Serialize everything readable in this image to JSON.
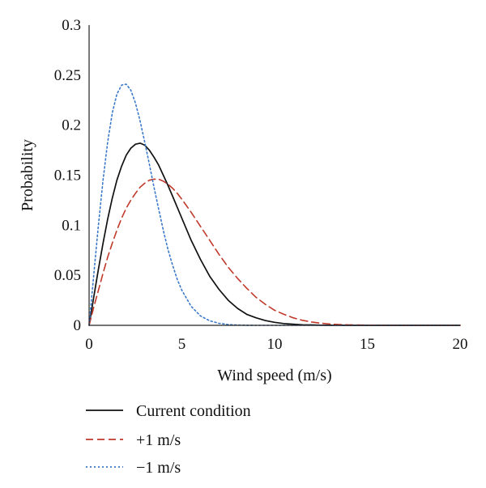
{
  "chart_data": {
    "type": "line",
    "title": "",
    "xlabel": "Wind speed (m/s)",
    "ylabel": "Probability",
    "xlim": [
      0,
      20
    ],
    "ylim": [
      0,
      0.3
    ],
    "xticks": [
      0,
      5,
      10,
      15,
      20
    ],
    "xtick_labels": [
      "0",
      "5",
      "10",
      "15",
      "20"
    ],
    "yticks": [
      0,
      0.05,
      0.1,
      0.15,
      0.2,
      0.25,
      0.3
    ],
    "ytick_labels": [
      "0",
      "0.05",
      "0.1",
      "0.15",
      "0.2",
      "0.25",
      "0.3"
    ],
    "grid": false,
    "legend_position": "bottom-left",
    "x": [
      0,
      0.25,
      0.5,
      0.75,
      1,
      1.25,
      1.5,
      1.75,
      2,
      2.25,
      2.5,
      2.75,
      3,
      3.25,
      3.5,
      3.75,
      4,
      4.25,
      4.5,
      4.75,
      5,
      5.5,
      6,
      6.5,
      7,
      7.5,
      8,
      8.5,
      9,
      9.5,
      10,
      10.5,
      11,
      11.5,
      12,
      12.5,
      13,
      13.5,
      14,
      15,
      16,
      17,
      18,
      19,
      20
    ],
    "series": [
      {
        "name": "Current condition",
        "color": "#111111",
        "dash": "solid",
        "values": [
          0,
          0.028,
          0.056,
          0.082,
          0.106,
          0.127,
          0.145,
          0.159,
          0.17,
          0.177,
          0.181,
          0.182,
          0.18,
          0.175,
          0.168,
          0.16,
          0.15,
          0.14,
          0.129,
          0.118,
          0.107,
          0.085,
          0.066,
          0.049,
          0.036,
          0.025,
          0.017,
          0.011,
          0.0075,
          0.0048,
          0.003,
          0.0018,
          0.0011,
          0.0006,
          0.0004,
          0.0002,
          0.0001,
          0.0001,
          0,
          0,
          0,
          0,
          0,
          0,
          0
        ]
      },
      {
        "name": "+1 m/s",
        "color": "#c0392b",
        "dash": "dashed",
        "values": [
          0,
          0.018,
          0.035,
          0.052,
          0.068,
          0.082,
          0.095,
          0.107,
          0.117,
          0.125,
          0.132,
          0.138,
          0.142,
          0.145,
          0.146,
          0.146,
          0.144,
          0.141,
          0.137,
          0.132,
          0.126,
          0.113,
          0.099,
          0.085,
          0.071,
          0.058,
          0.047,
          0.037,
          0.028,
          0.021,
          0.015,
          0.011,
          0.0075,
          0.005,
          0.0033,
          0.0021,
          0.0013,
          0.0008,
          0.0005,
          0.0002,
          0.0001,
          0,
          0,
          0,
          0
        ]
      },
      {
        "name": "−1 m/s",
        "color": "#3a78c9",
        "dash": "dotted",
        "values": [
          0,
          0.05,
          0.1,
          0.145,
          0.183,
          0.212,
          0.231,
          0.24,
          0.241,
          0.235,
          0.222,
          0.204,
          0.183,
          0.161,
          0.138,
          0.116,
          0.095,
          0.076,
          0.06,
          0.046,
          0.035,
          0.019,
          0.0095,
          0.0045,
          0.002,
          0.0008,
          0.0003,
          0.0001,
          0,
          0,
          0,
          0,
          0,
          0,
          0,
          0,
          0,
          0,
          0,
          0,
          0,
          0,
          0,
          0,
          0
        ]
      }
    ]
  }
}
